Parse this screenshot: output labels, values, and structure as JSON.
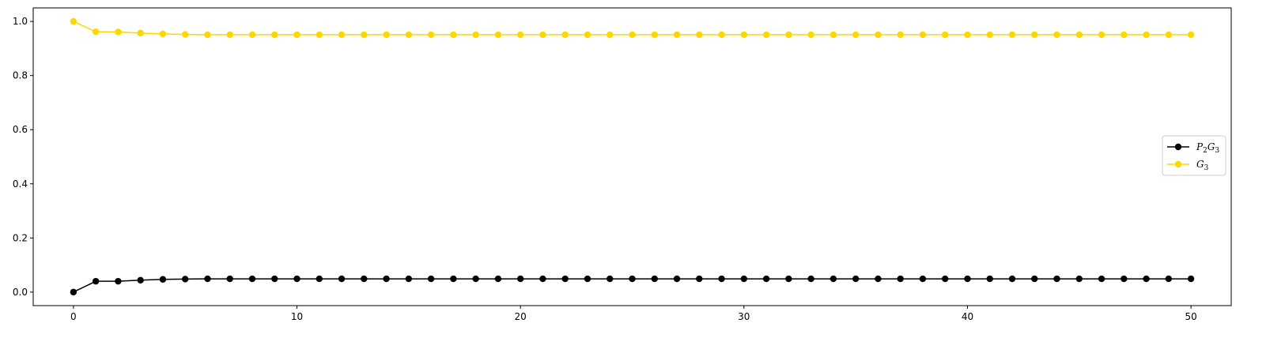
{
  "chart_data": {
    "type": "line",
    "title": "",
    "xlabel": "",
    "ylabel": "",
    "xlim": [
      -1.8,
      51.8
    ],
    "ylim": [
      -0.05,
      1.05
    ],
    "x_ticks": [
      0,
      10,
      20,
      30,
      40,
      50
    ],
    "x_tick_labels": [
      "0",
      "10",
      "20",
      "30",
      "40",
      "50"
    ],
    "y_ticks": [
      0.0,
      0.2,
      0.4,
      0.6,
      0.8,
      1.0
    ],
    "y_tick_labels": [
      "0.0",
      "0.2",
      "0.4",
      "0.6",
      "0.8",
      "1.0"
    ],
    "grid": false,
    "legend_position": "center-right",
    "x": [
      0,
      1,
      2,
      3,
      4,
      5,
      6,
      7,
      8,
      9,
      10,
      11,
      12,
      13,
      14,
      15,
      16,
      17,
      18,
      19,
      20,
      21,
      22,
      23,
      24,
      25,
      26,
      27,
      28,
      29,
      30,
      31,
      32,
      33,
      34,
      35,
      36,
      37,
      38,
      39,
      40,
      41,
      42,
      43,
      44,
      45,
      46,
      47,
      48,
      49,
      50
    ],
    "series": [
      {
        "name": "P2G3",
        "legend": {
          "main1": "P",
          "sub1": "2",
          "main2": "G",
          "sub2": "3"
        },
        "color": "#000000",
        "values": [
          0.0,
          0.04,
          0.04,
          0.044,
          0.047,
          0.048,
          0.049,
          0.049,
          0.049,
          0.049,
          0.049,
          0.049,
          0.049,
          0.049,
          0.049,
          0.049,
          0.049,
          0.049,
          0.049,
          0.049,
          0.049,
          0.049,
          0.049,
          0.049,
          0.049,
          0.049,
          0.049,
          0.049,
          0.049,
          0.049,
          0.049,
          0.049,
          0.049,
          0.049,
          0.049,
          0.049,
          0.049,
          0.049,
          0.049,
          0.049,
          0.049,
          0.049,
          0.049,
          0.049,
          0.049,
          0.049,
          0.049,
          0.049,
          0.049,
          0.049,
          0.049
        ]
      },
      {
        "name": "G3",
        "legend": {
          "main1": "G",
          "sub1": "3",
          "main2": "",
          "sub2": ""
        },
        "color": "#FFD700",
        "values": [
          1.0,
          0.962,
          0.961,
          0.957,
          0.954,
          0.952,
          0.951,
          0.951,
          0.951,
          0.951,
          0.951,
          0.951,
          0.951,
          0.951,
          0.951,
          0.951,
          0.951,
          0.951,
          0.951,
          0.951,
          0.951,
          0.951,
          0.951,
          0.951,
          0.951,
          0.951,
          0.951,
          0.951,
          0.951,
          0.951,
          0.951,
          0.951,
          0.951,
          0.951,
          0.951,
          0.951,
          0.951,
          0.951,
          0.951,
          0.951,
          0.951,
          0.951,
          0.951,
          0.951,
          0.951,
          0.951,
          0.951,
          0.951,
          0.951,
          0.951,
          0.951
        ]
      }
    ]
  }
}
